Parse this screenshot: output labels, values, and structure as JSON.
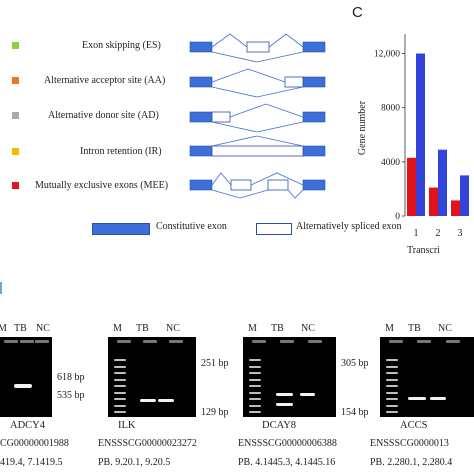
{
  "panel_c_label": "C",
  "legend": {
    "items": [
      {
        "label": "Exon skipping  (ES)",
        "color": "#8ad43c"
      },
      {
        "label": "Alternative acceptor site (AA)",
        "color": "#f0761e"
      },
      {
        "label": "Alternative donor site (AD)",
        "color": "#a9a9a9"
      },
      {
        "label": "Intron retention (IR)",
        "color": "#f5b800"
      },
      {
        "label": "Mutually exclusive exons (MEE)",
        "color": "#e3131b"
      }
    ],
    "constitutive_label": "Constitutive exon",
    "alt_label": "Alternatively spliced exon",
    "exon_color": "#3c6fd8"
  },
  "chart_data": {
    "type": "bar",
    "ylabel": "Gene number",
    "xlabel": "Transcri",
    "yticks": [
      "12,000",
      "8000",
      "4000",
      "0"
    ],
    "ytick_values": [
      12000,
      8000,
      4000,
      0
    ],
    "ylim": [
      0,
      13000
    ],
    "categories": [
      "1",
      "2",
      "3"
    ],
    "series": [
      {
        "color": "#e3131b",
        "values": [
          4300,
          2100,
          1150
        ]
      },
      {
        "color": "#3344dd",
        "values": [
          12000,
          4900,
          3000
        ]
      }
    ]
  },
  "gels": [
    {
      "lanes": [
        "M",
        "TB",
        "NC"
      ],
      "bp": [
        "618 bp",
        "535 bp"
      ],
      "gene": "ADCY4",
      "id": "CG00000001988",
      "pb": "419.4, 7.1419.5"
    },
    {
      "lanes": [
        "M",
        "TB",
        "NC"
      ],
      "bp": [
        "251 bp",
        "129 bp"
      ],
      "gene": "ILK",
      "id": "ENSSSCG00000023272",
      "pb": "PB. 9.20.1, 9.20.5"
    },
    {
      "lanes": [
        "M",
        "TB",
        "NC"
      ],
      "bp": [
        "305 bp",
        "154 bp"
      ],
      "gene": "DCAY8",
      "id": "ENSSSCG00000006388",
      "pb": "PB. 4.1445.3, 4.1445.16"
    },
    {
      "lanes": [
        "M",
        "TB",
        "NC"
      ],
      "bp": [],
      "gene": "ACCS",
      "id": "ENSSSCG0000013",
      "pb": "PB. 2.280.1, 2.280.4"
    }
  ]
}
